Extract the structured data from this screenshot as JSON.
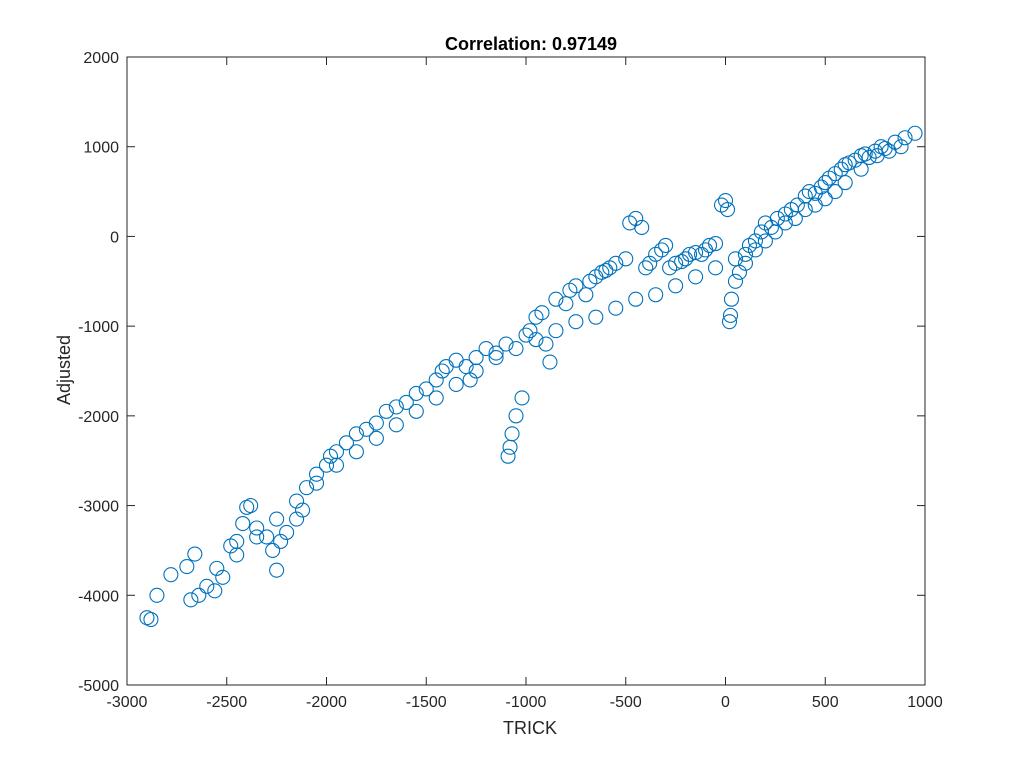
{
  "chart_data": {
    "type": "scatter",
    "title": "Correlation: 0.97149",
    "xlabel": "TRICK",
    "ylabel": "Adjusted",
    "xlim": [
      -3000,
      1000
    ],
    "ylim": [
      -5000,
      2000
    ],
    "xticks": [
      -3000,
      -2500,
      -2000,
      -1500,
      -1000,
      -500,
      0,
      500,
      1000
    ],
    "yticks": [
      -5000,
      -4000,
      -3000,
      -2000,
      -1000,
      0,
      1000,
      2000
    ],
    "xtick_labels": [
      "-3000",
      "-2500",
      "-2000",
      "-1500",
      "-1000",
      "-500",
      "0",
      "500",
      "1000"
    ],
    "ytick_labels": [
      "-5000",
      "-4000",
      "-3000",
      "-2000",
      "-1000",
      "0",
      "1000",
      "2000"
    ],
    "grid": false,
    "marker": "open circle",
    "series": [
      {
        "name": "points",
        "color": "#0072BD",
        "points": [
          [
            -2900,
            -4250
          ],
          [
            -2880,
            -4270
          ],
          [
            -2850,
            -4000
          ],
          [
            -2780,
            -3770
          ],
          [
            -2700,
            -3680
          ],
          [
            -2660,
            -3540
          ],
          [
            -2680,
            -4050
          ],
          [
            -2640,
            -4000
          ],
          [
            -2560,
            -3950
          ],
          [
            -2520,
            -3800
          ],
          [
            -2480,
            -3450
          ],
          [
            -2450,
            -3400
          ],
          [
            -2420,
            -3200
          ],
          [
            -2400,
            -3020
          ],
          [
            -2380,
            -3000
          ],
          [
            -2350,
            -3250
          ],
          [
            -2300,
            -3350
          ],
          [
            -2270,
            -3500
          ],
          [
            -2250,
            -3720
          ],
          [
            -2230,
            -3400
          ],
          [
            -2200,
            -3300
          ],
          [
            -2150,
            -3150
          ],
          [
            -2120,
            -3050
          ],
          [
            -2100,
            -2800
          ],
          [
            -2050,
            -2650
          ],
          [
            -2000,
            -2550
          ],
          [
            -1980,
            -2450
          ],
          [
            -1950,
            -2400
          ],
          [
            -1900,
            -2300
          ],
          [
            -1850,
            -2200
          ],
          [
            -1800,
            -2150
          ],
          [
            -1750,
            -2080
          ],
          [
            -1700,
            -1950
          ],
          [
            -1650,
            -1900
          ],
          [
            -1600,
            -1850
          ],
          [
            -1550,
            -1750
          ],
          [
            -1500,
            -1700
          ],
          [
            -1450,
            -1600
          ],
          [
            -1420,
            -1500
          ],
          [
            -1400,
            -1450
          ],
          [
            -1350,
            -1380
          ],
          [
            -1300,
            -1450
          ],
          [
            -1280,
            -1600
          ],
          [
            -1250,
            -1350
          ],
          [
            -1200,
            -1250
          ],
          [
            -1150,
            -1300
          ],
          [
            -1100,
            -1200
          ],
          [
            -1090,
            -2450
          ],
          [
            -1080,
            -2350
          ],
          [
            -1070,
            -2200
          ],
          [
            -1050,
            -2000
          ],
          [
            -1020,
            -1800
          ],
          [
            -1000,
            -1100
          ],
          [
            -980,
            -1050
          ],
          [
            -950,
            -900
          ],
          [
            -920,
            -850
          ],
          [
            -900,
            -1200
          ],
          [
            -880,
            -1400
          ],
          [
            -850,
            -700
          ],
          [
            -800,
            -750
          ],
          [
            -780,
            -600
          ],
          [
            -750,
            -550
          ],
          [
            -700,
            -650
          ],
          [
            -680,
            -500
          ],
          [
            -650,
            -450
          ],
          [
            -620,
            -400
          ],
          [
            -600,
            -380
          ],
          [
            -580,
            -350
          ],
          [
            -550,
            -300
          ],
          [
            -500,
            -250
          ],
          [
            -480,
            150
          ],
          [
            -450,
            200
          ],
          [
            -420,
            100
          ],
          [
            -400,
            -350
          ],
          [
            -380,
            -300
          ],
          [
            -350,
            -200
          ],
          [
            -320,
            -150
          ],
          [
            -300,
            -100
          ],
          [
            -280,
            -350
          ],
          [
            -250,
            -300
          ],
          [
            -220,
            -280
          ],
          [
            -200,
            -250
          ],
          [
            -180,
            -200
          ],
          [
            -150,
            -180
          ],
          [
            -120,
            -200
          ],
          [
            -100,
            -150
          ],
          [
            -80,
            -100
          ],
          [
            -50,
            -80
          ],
          [
            -20,
            350
          ],
          [
            0,
            400
          ],
          [
            10,
            300
          ],
          [
            20,
            -950
          ],
          [
            25,
            -880
          ],
          [
            30,
            -700
          ],
          [
            50,
            -500
          ],
          [
            70,
            -400
          ],
          [
            100,
            -300
          ],
          [
            120,
            -100
          ],
          [
            150,
            -50
          ],
          [
            180,
            50
          ],
          [
            200,
            150
          ],
          [
            230,
            100
          ],
          [
            260,
            200
          ],
          [
            300,
            250
          ],
          [
            330,
            300
          ],
          [
            360,
            350
          ],
          [
            400,
            450
          ],
          [
            420,
            500
          ],
          [
            450,
            480
          ],
          [
            480,
            550
          ],
          [
            500,
            600
          ],
          [
            520,
            650
          ],
          [
            550,
            700
          ],
          [
            580,
            750
          ],
          [
            600,
            800
          ],
          [
            620,
            820
          ],
          [
            650,
            850
          ],
          [
            680,
            900
          ],
          [
            700,
            920
          ],
          [
            720,
            880
          ],
          [
            750,
            950
          ],
          [
            780,
            1000
          ],
          [
            800,
            980
          ],
          [
            850,
            1050
          ],
          [
            900,
            1100
          ],
          [
            950,
            1150
          ],
          [
            880,
            1000
          ],
          [
            820,
            950
          ],
          [
            760,
            900
          ],
          [
            680,
            750
          ],
          [
            600,
            600
          ],
          [
            550,
            500
          ],
          [
            500,
            420
          ],
          [
            450,
            350
          ],
          [
            400,
            300
          ],
          [
            350,
            200
          ],
          [
            300,
            150
          ],
          [
            250,
            50
          ],
          [
            200,
            -50
          ],
          [
            150,
            -150
          ],
          [
            100,
            -200
          ],
          [
            50,
            -250
          ],
          [
            -50,
            -350
          ],
          [
            -150,
            -450
          ],
          [
            -250,
            -550
          ],
          [
            -350,
            -650
          ],
          [
            -450,
            -700
          ],
          [
            -550,
            -800
          ],
          [
            -650,
            -900
          ],
          [
            -750,
            -950
          ],
          [
            -850,
            -1050
          ],
          [
            -950,
            -1150
          ],
          [
            -1050,
            -1250
          ],
          [
            -1150,
            -1350
          ],
          [
            -1250,
            -1500
          ],
          [
            -1350,
            -1650
          ],
          [
            -1450,
            -1800
          ],
          [
            -1550,
            -1950
          ],
          [
            -1650,
            -2100
          ],
          [
            -1750,
            -2250
          ],
          [
            -1850,
            -2400
          ],
          [
            -1950,
            -2550
          ],
          [
            -2050,
            -2750
          ],
          [
            -2150,
            -2950
          ],
          [
            -2250,
            -3150
          ],
          [
            -2350,
            -3350
          ],
          [
            -2450,
            -3550
          ],
          [
            -2550,
            -3700
          ],
          [
            -2600,
            -3900
          ]
        ]
      }
    ]
  }
}
